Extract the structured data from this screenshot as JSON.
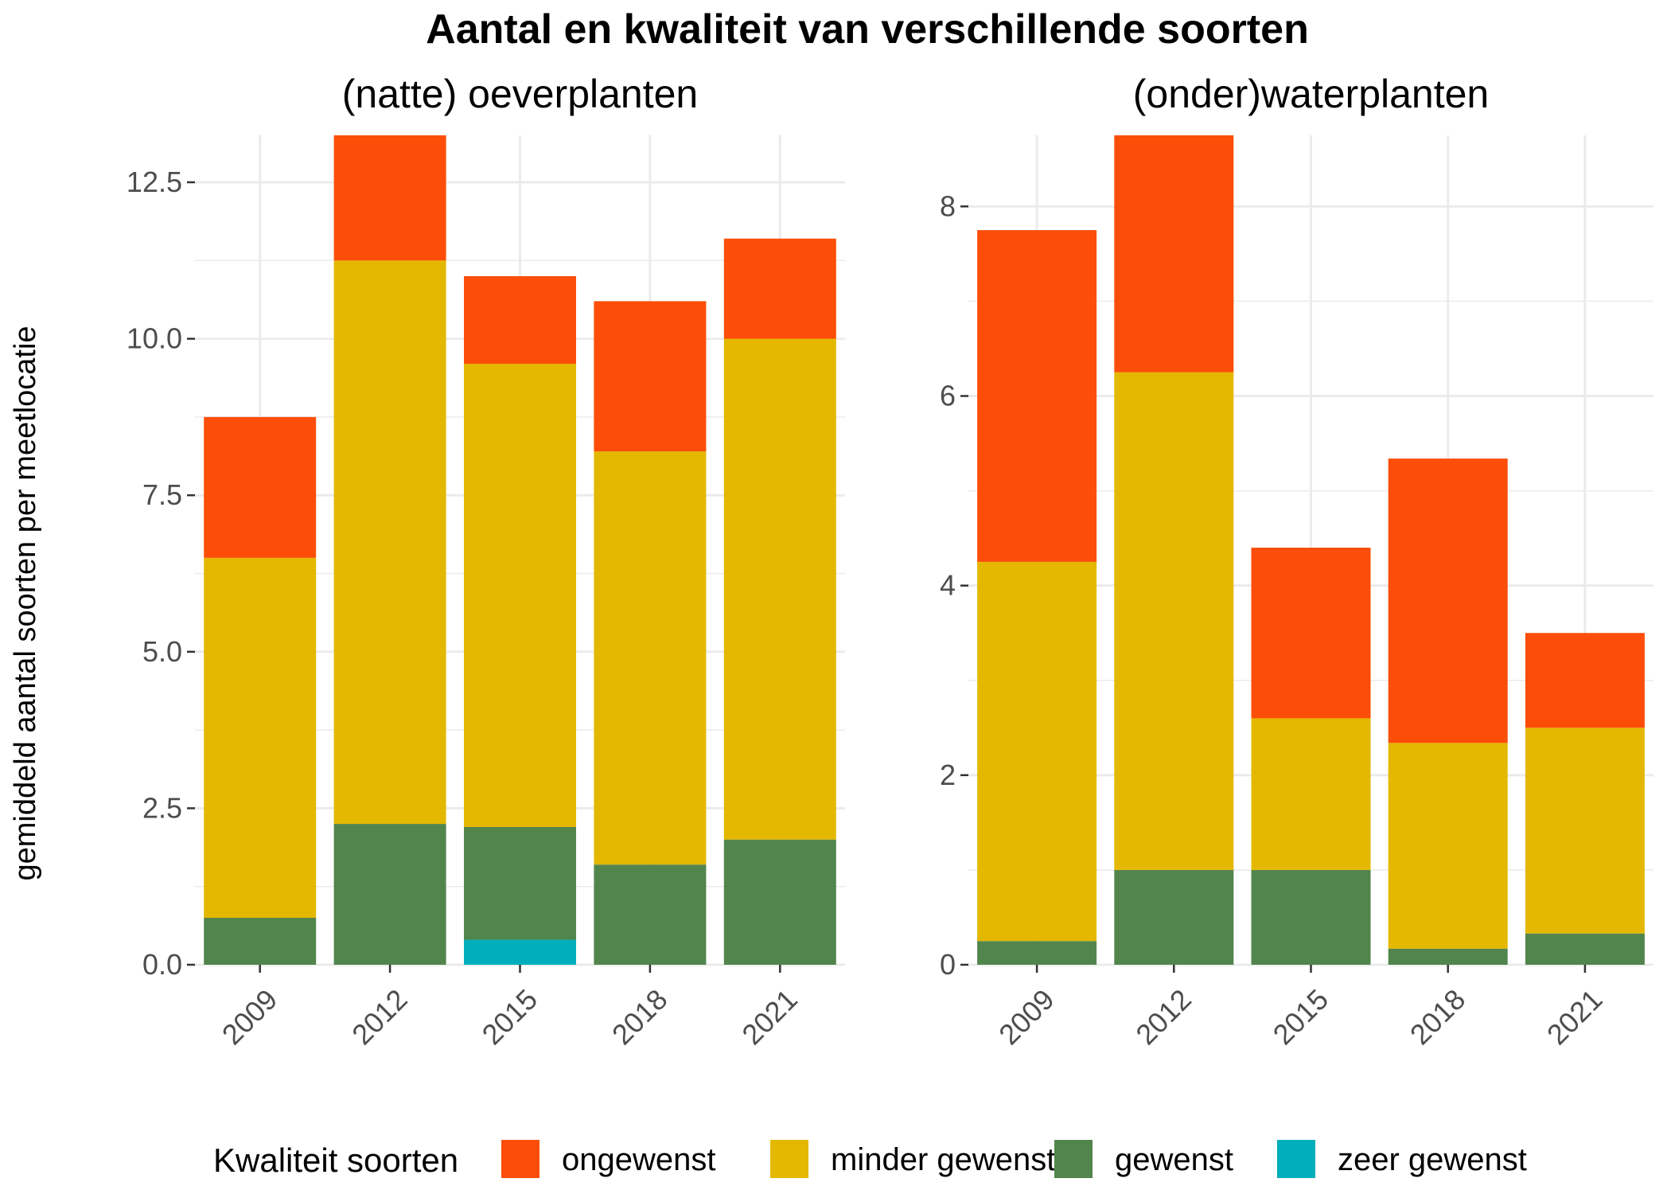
{
  "chart_data": {
    "type": "bar",
    "stacked": true,
    "title": "Aantal en kwaliteit van verschillende soorten",
    "ylabel": "gemiddeld aantal soorten per meetlocatie",
    "legend": {
      "title": "Kwaliteit soorten",
      "placement": "bottom",
      "entries": [
        "ongewenst",
        "minder gewenst",
        "gewenst",
        "zeer gewenst"
      ]
    },
    "colors": {
      "ongewenst": "#FC4E08",
      "minder gewenst": "#E4B800",
      "gewenst": "#52854C",
      "zeer gewenst": "#00AFBB"
    },
    "grid": true,
    "panels": [
      {
        "subtitle": "(natte) oeverplanten",
        "categories": [
          "2009",
          "2012",
          "2015",
          "2018",
          "2021"
        ],
        "ylim": [
          0,
          13.25
        ],
        "yticks": [
          0,
          2.5,
          5,
          7.5,
          10,
          12.5
        ],
        "ytick_labels": [
          "0.0",
          "2.5",
          "5.0",
          "7.5",
          "10.0",
          "12.5"
        ],
        "series": [
          {
            "name": "zeer gewenst",
            "values": [
              0,
              0,
              0.4,
              0,
              0
            ]
          },
          {
            "name": "gewenst",
            "values": [
              0.75,
              2.25,
              1.8,
              1.6,
              2.0
            ]
          },
          {
            "name": "minder gewenst",
            "values": [
              5.75,
              9.0,
              7.4,
              6.6,
              8.0
            ]
          },
          {
            "name": "ongewenst",
            "values": [
              2.25,
              2.0,
              1.4,
              2.4,
              1.6
            ]
          }
        ]
      },
      {
        "subtitle": "(onder)waterplanten",
        "categories": [
          "2009",
          "2012",
          "2015",
          "2018",
          "2021"
        ],
        "ylim": [
          0,
          8.75
        ],
        "yticks": [
          0,
          2,
          4,
          6,
          8
        ],
        "ytick_labels": [
          "0",
          "2",
          "4",
          "6",
          "8"
        ],
        "series": [
          {
            "name": "zeer gewenst",
            "values": [
              0,
              0,
              0,
              0,
              0
            ]
          },
          {
            "name": "gewenst",
            "values": [
              0.25,
              1.0,
              1.0,
              0.17,
              0.33
            ]
          },
          {
            "name": "minder gewenst",
            "values": [
              4.0,
              5.25,
              1.6,
              2.17,
              2.17
            ]
          },
          {
            "name": "ongewenst",
            "values": [
              3.5,
              2.5,
              1.8,
              3.0,
              1.0
            ]
          }
        ]
      }
    ]
  }
}
